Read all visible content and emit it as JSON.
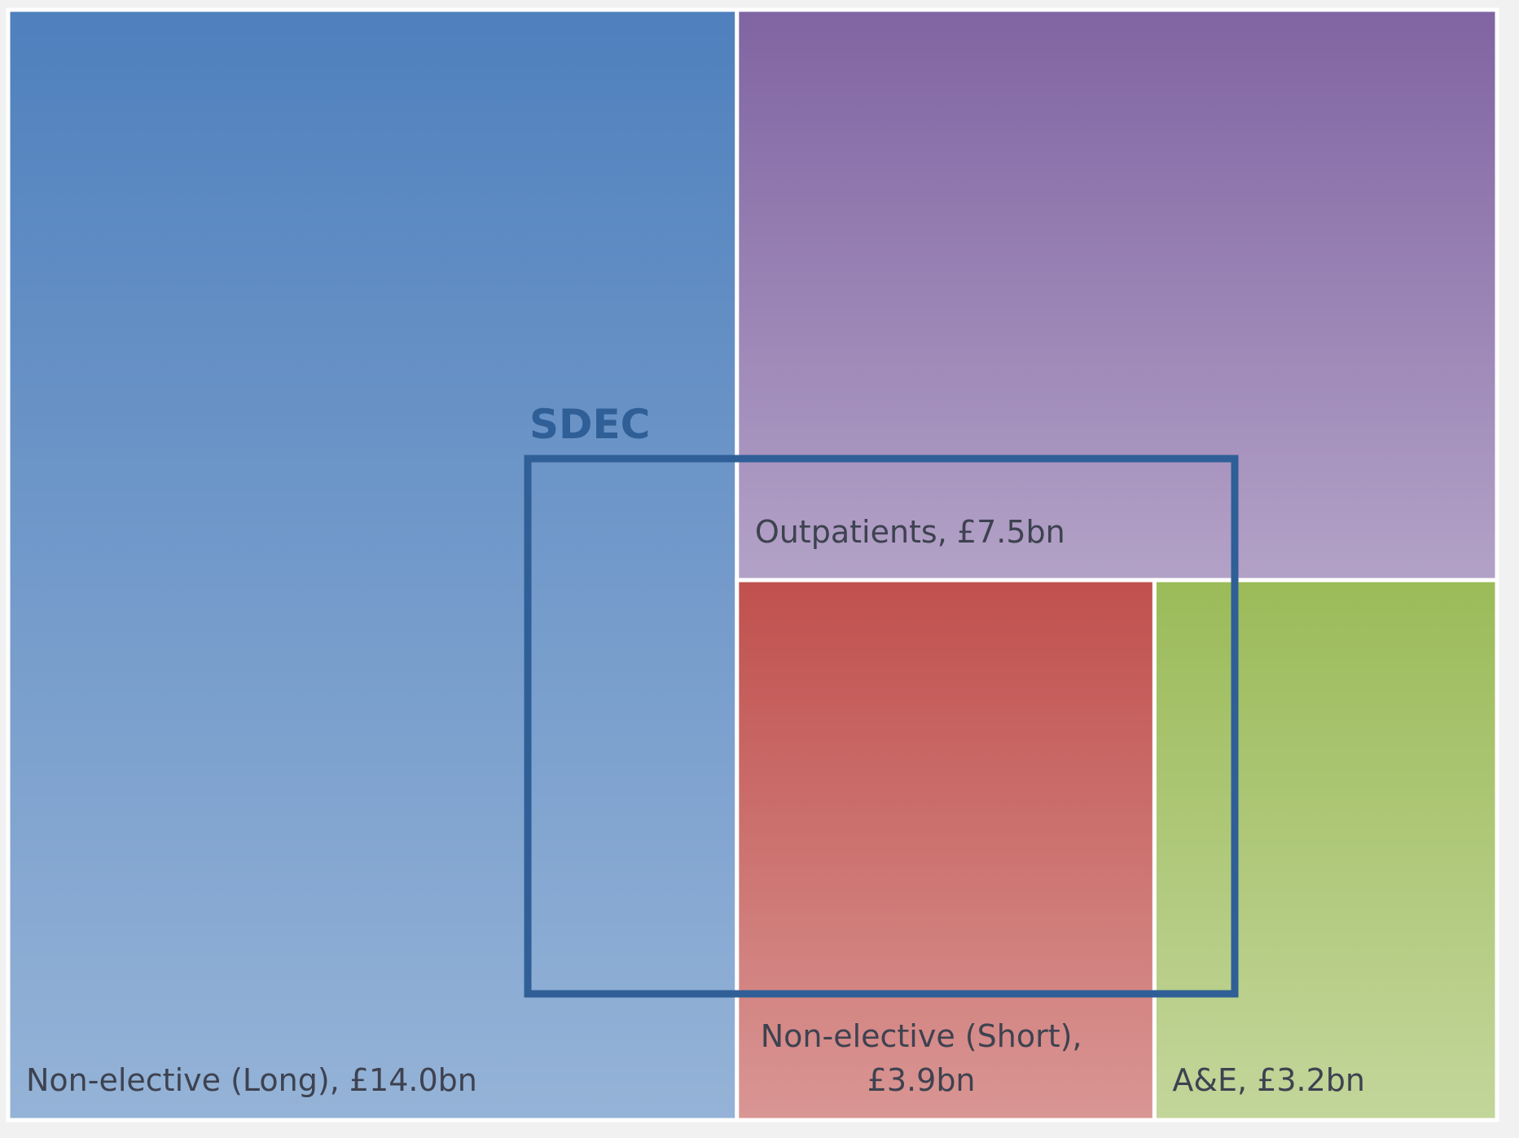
{
  "chart_data": {
    "type": "treemap",
    "unit": "£bn",
    "tiles": [
      {
        "id": "nel-long",
        "label": "Non-elective (Long), £14.0bn",
        "value": 14.0,
        "color_top": "#4f80bd",
        "color_bottom": "#95b3d7"
      },
      {
        "id": "outpatients",
        "label": "Outpatients, £7.5bn",
        "value": 7.5,
        "color_top": "#8064a2",
        "color_bottom": "#b3a2c7"
      },
      {
        "id": "nel-short",
        "label_lines": [
          "Non-elective (Short),",
          "£3.9bn"
        ],
        "value": 3.9,
        "color_top": "#c0504d",
        "color_bottom": "#d99694"
      },
      {
        "id": "ae",
        "label": "A&E, £3.2bn",
        "value": 3.2,
        "color_top": "#9bbb59",
        "color_bottom": "#c3d69b"
      }
    ],
    "overlay": {
      "label": "SDEC",
      "color": "#2f5f96"
    }
  }
}
